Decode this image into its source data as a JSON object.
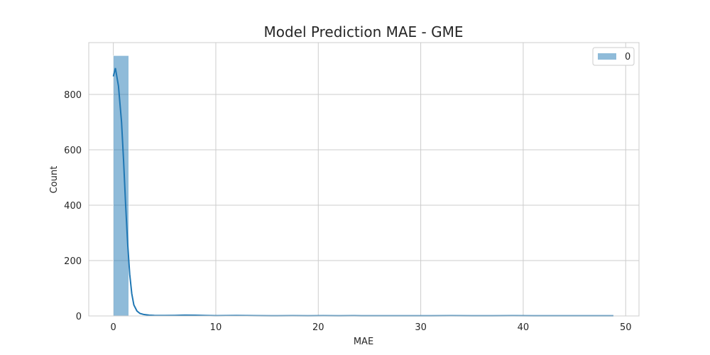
{
  "chart_data": {
    "type": "histogram",
    "title": "Model Prediction MAE - GME",
    "xlabel": "MAE",
    "ylabel": "Count",
    "xlim": [
      -2.4,
      51.3
    ],
    "ylim": [
      0,
      987
    ],
    "x_ticks": [
      0,
      10,
      20,
      30,
      40,
      50
    ],
    "y_ticks": [
      0,
      200,
      400,
      600,
      800
    ],
    "grid": true,
    "legend": {
      "placement": "top-right",
      "entries": [
        {
          "label": "0",
          "color": "#1f77b4"
        }
      ]
    },
    "colors": {
      "bar": "#1f77b4",
      "kde": "#1f77b4",
      "grid": "#cccccc",
      "frame": "#cccccc"
    },
    "bins": [
      {
        "x0": 0.0,
        "x1": 1.5,
        "count": 940
      },
      {
        "x0": 1.5,
        "x1": 3.0,
        "count": 2
      },
      {
        "x0": 3.0,
        "x1": 4.5,
        "count": 1
      },
      {
        "x0": 4.5,
        "x1": 6.0,
        "count": 1
      },
      {
        "x0": 6.0,
        "x1": 7.5,
        "count": 2
      },
      {
        "x0": 7.5,
        "x1": 9.0,
        "count": 1
      },
      {
        "x0": 9.0,
        "x1": 10.5,
        "count": 1
      },
      {
        "x0": 10.5,
        "x1": 12.0,
        "count": 1
      },
      {
        "x0": 12.0,
        "x1": 13.5,
        "count": 1
      },
      {
        "x0": 16.5,
        "x1": 18.0,
        "count": 1
      },
      {
        "x0": 19.5,
        "x1": 21.0,
        "count": 1
      },
      {
        "x0": 22.5,
        "x1": 24.0,
        "count": 1
      },
      {
        "x0": 31.5,
        "x1": 33.0,
        "count": 1
      },
      {
        "x0": 39.0,
        "x1": 40.5,
        "count": 1
      },
      {
        "x0": 48.0,
        "x1": 49.5,
        "count": 1
      }
    ],
    "kde": {
      "x": [
        0,
        0.2,
        0.5,
        0.8,
        1.0,
        1.2,
        1.4,
        1.6,
        1.8,
        2.0,
        2.3,
        2.6,
        3.0,
        3.5,
        4.0,
        5.0,
        6.0,
        7.0,
        8.0,
        9.0,
        10.0,
        12.0,
        14.0,
        16.0,
        17.5,
        19.0,
        20.5,
        22.0,
        23.5,
        25.0,
        28.0,
        31.0,
        33.0,
        35.0,
        37.0,
        39.0,
        41.0,
        44.0,
        47.0,
        48.8
      ],
      "y": [
        865,
        895,
        830,
        700,
        560,
        400,
        260,
        150,
        80,
        40,
        18,
        9,
        5,
        3,
        2,
        1.5,
        2,
        3,
        2.5,
        1.5,
        1,
        1.5,
        1,
        0.5,
        1,
        0.5,
        1,
        0.5,
        1,
        0.5,
        0.5,
        0.5,
        1,
        0.5,
        0.5,
        1,
        0.5,
        0.5,
        0.5,
        0.5
      ]
    }
  }
}
